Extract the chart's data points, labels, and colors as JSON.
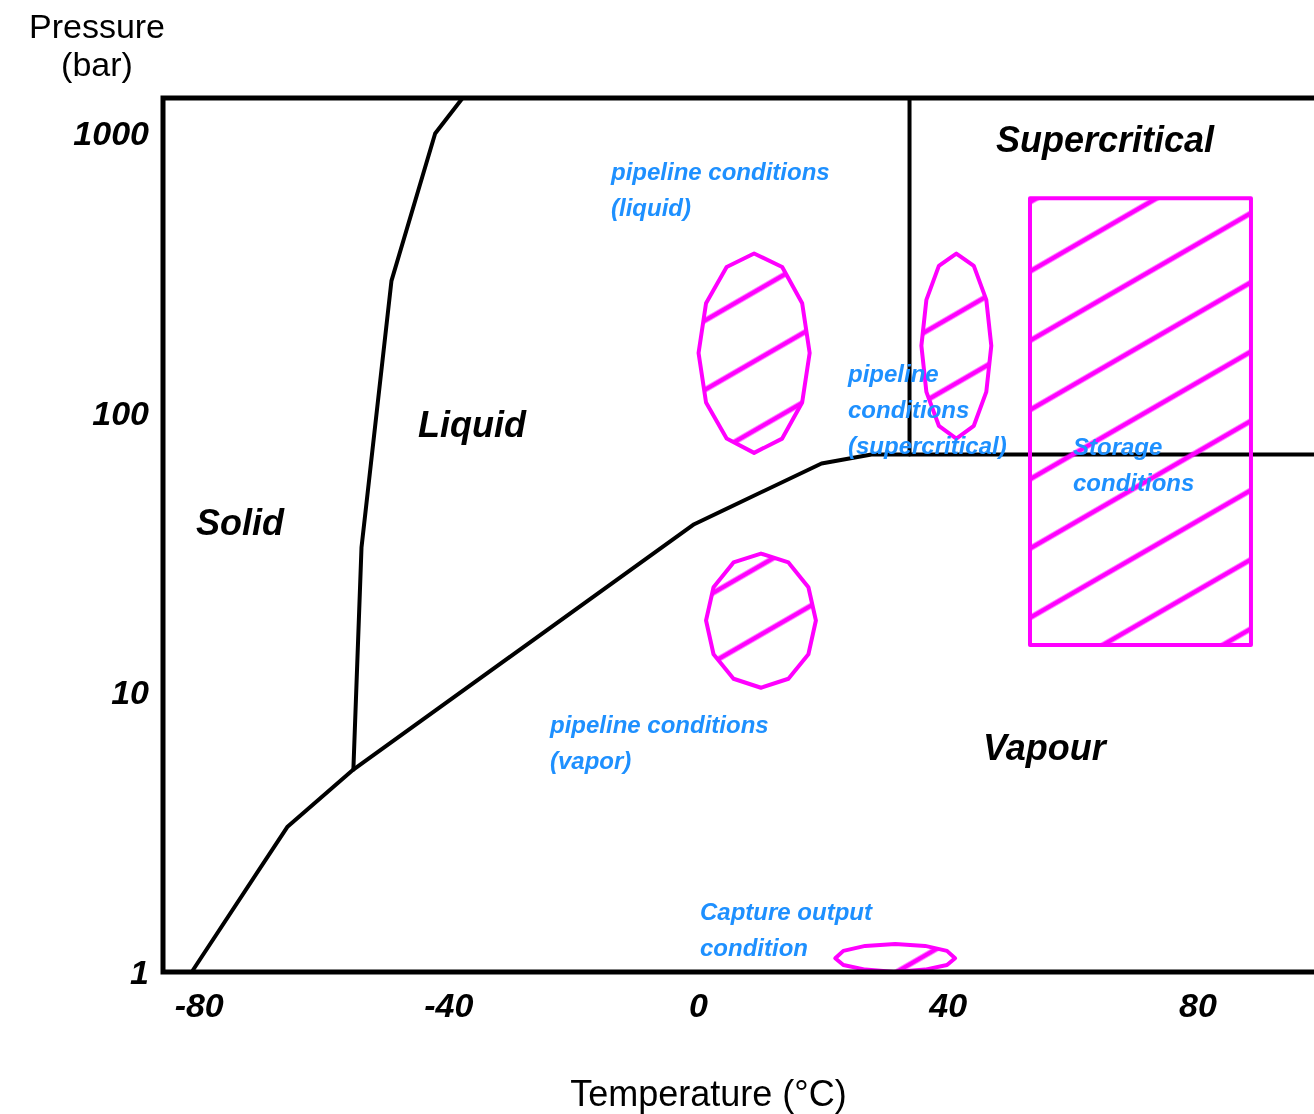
{
  "chart_data": {
    "type": "line",
    "xlabel": "Temperature (°C)",
    "ylabel": "Pressure\n(bar)",
    "log": "y",
    "xlim": [
      -85.8,
      98.6
    ],
    "ylim": [
      1,
      1340
    ],
    "xticks": [
      -80,
      -40,
      0,
      40,
      80
    ],
    "yticks": [
      1,
      10,
      100,
      1000
    ],
    "grid": false,
    "marker": "none",
    "line_style": "solid",
    "series": [
      {
        "color": "#000000",
        "x": [
          -81.2,
          -65.9,
          -55.3,
          -0.7,
          19.7,
          27.7,
          33.8,
          98.6
        ],
        "values": [
          1,
          3.3,
          5.3,
          40,
          66,
          71,
          71,
          71
        ]
      },
      {
        "color": "#000000",
        "x": [
          -55.3,
          -54,
          -49.2,
          -42.2,
          -37.8
        ],
        "values": [
          5.3,
          33,
          297,
          1000,
          1340
        ]
      },
      {
        "color": "#000000",
        "x": [
          33.8,
          33.8
        ],
        "values": [
          71,
          1340
        ]
      },
      {
        "type": "area",
        "color": "#ff00ff",
        "x": [
          17.8,
          16.6,
          13.4,
          8.9,
          4.5,
          1.2,
          0,
          1.2,
          4.5,
          8.9,
          13.4,
          16.6,
          17.8
        ],
        "values": [
          164,
          247,
          333,
          372,
          333,
          247,
          164,
          109,
          81,
          72,
          81,
          109,
          164
        ]
      },
      {
        "type": "area",
        "color": "#ff00ff",
        "x": [
          46.9,
          46.1,
          44.1,
          41.3,
          38.5,
          36.5,
          35.7,
          36.5,
          38.5,
          41.3,
          44.1,
          46.1,
          46.9
        ],
        "values": [
          174,
          254,
          336,
          372,
          336,
          254,
          174,
          119,
          90,
          81,
          90,
          119,
          174
        ]
      },
      {
        "type": "area",
        "color": "#ff00ff",
        "x": [
          18.8,
          17.6,
          14.4,
          10,
          5.6,
          2.4,
          1.2,
          2.4,
          5.6,
          10,
          14.4,
          17.6,
          18.8
        ],
        "values": [
          18.1,
          23.8,
          29.2,
          31.4,
          29.2,
          23.8,
          18.1,
          13.7,
          11.2,
          10.4,
          11.2,
          13.7,
          18.1
        ]
      },
      {
        "type": "area",
        "color": "#ff00ff",
        "x": [
          41.1,
          39.8,
          36.3,
          31.5,
          26.7,
          23.2,
          21.9,
          23.2,
          26.7,
          31.5,
          36.3,
          39.8,
          41.1
        ],
        "values": [
          1.12,
          1.19,
          1.24,
          1.26,
          1.24,
          1.19,
          1.12,
          1.06,
          1.02,
          1,
          1.02,
          1.06,
          1.12
        ]
      },
      {
        "type": "area",
        "color": "#ff00ff",
        "x": [
          53.1,
          88.5,
          88.5,
          53.1,
          53.1
        ],
        "values": [
          587,
          587,
          14.8,
          14.8,
          587
        ]
      }
    ],
    "annotations": [
      "Solid",
      "Liquid",
      "Vapour",
      "Supercritical",
      "pipeline conditions\n(liquid)",
      "pipeline\nconditions\n(supercritical)",
      "Storage\nconditions",
      "pipeline conditions\n(vapor)",
      "Capture output\ncondition"
    ]
  }
}
